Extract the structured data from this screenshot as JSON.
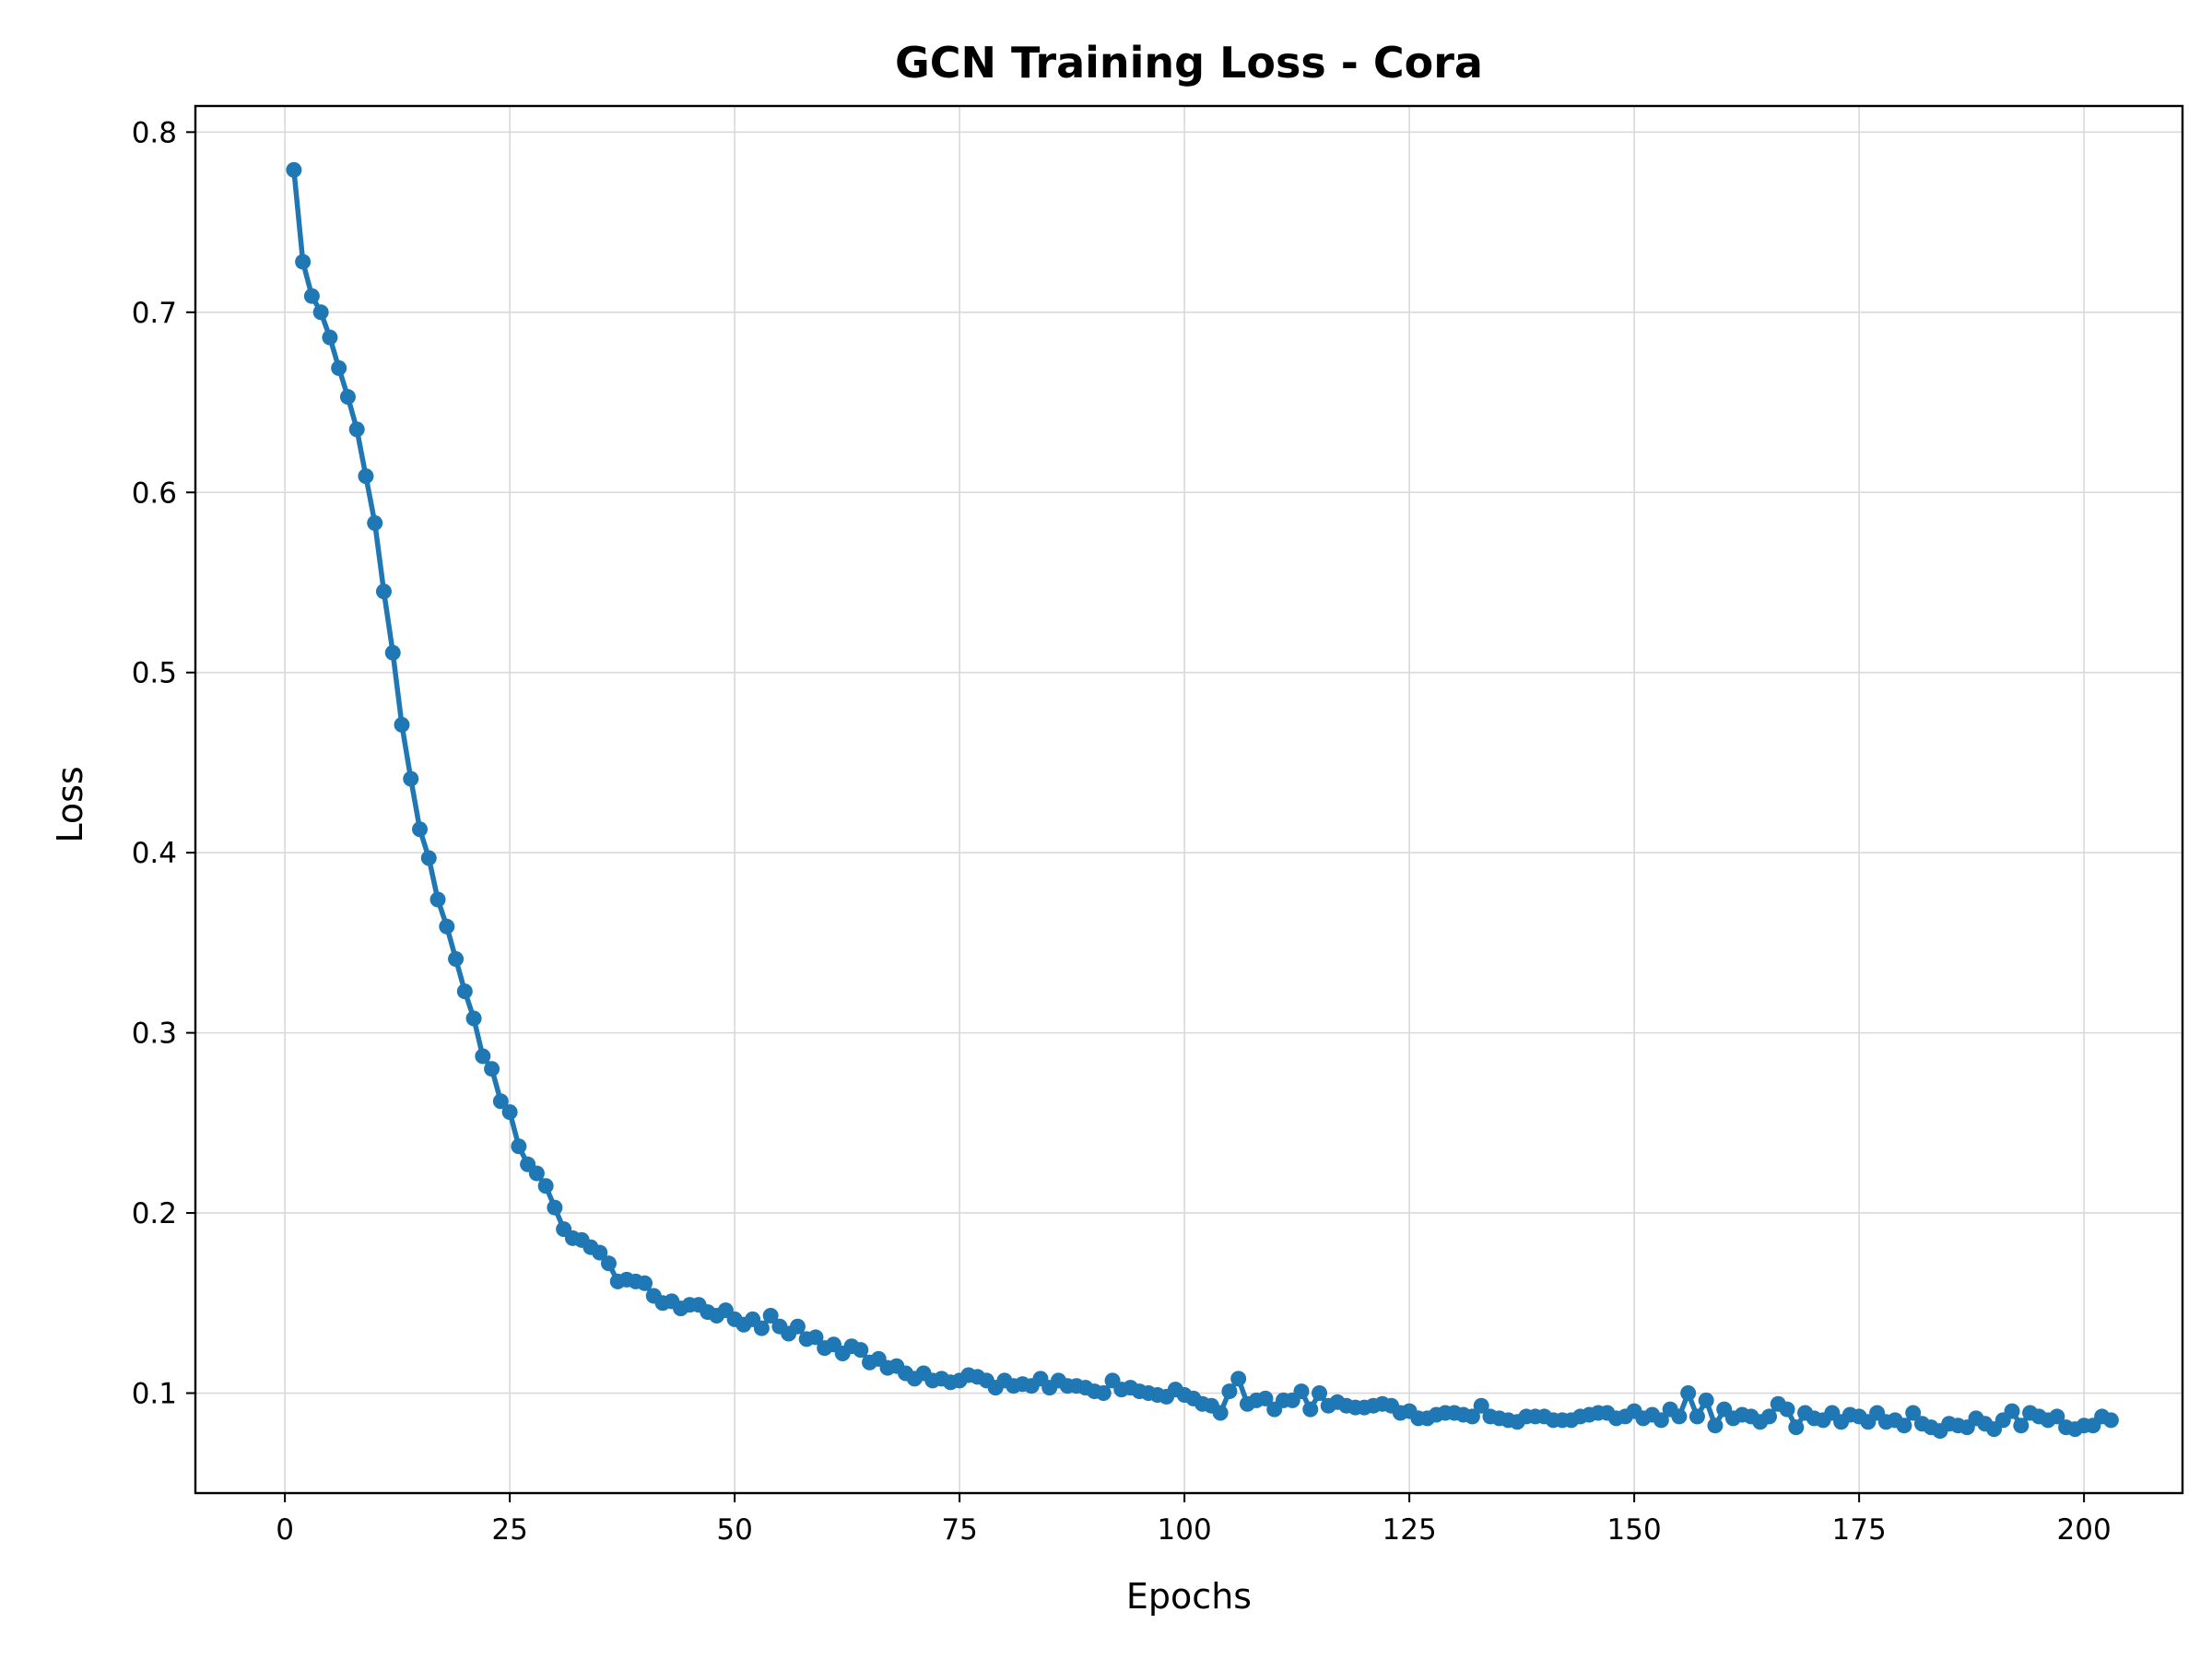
{
  "chart_data": {
    "type": "line",
    "title": "GCN Training Loss - Cora",
    "xlabel": "Epochs",
    "ylabel": "Loss",
    "xlim": [
      -9.95,
      210.95
    ],
    "ylim": [
      0.0445,
      0.8145
    ],
    "xticks": [
      0,
      25,
      50,
      75,
      100,
      125,
      150,
      175,
      200
    ],
    "yticks": [
      0.1,
      0.2,
      0.3,
      0.4,
      0.5,
      0.6,
      0.7,
      0.8
    ],
    "xtick_labels": [
      "0",
      "25",
      "50",
      "75",
      "100",
      "125",
      "150",
      "175",
      "200"
    ],
    "ytick_labels": [
      "0.1",
      "0.2",
      "0.3",
      "0.4",
      "0.5",
      "0.6",
      "0.7",
      "0.8"
    ],
    "grid": true,
    "marker": "circle",
    "series": [
      {
        "color": "#1f77b4",
        "x_start": 1,
        "x_step": 1,
        "values": [
          0.779,
          0.728,
          0.709,
          0.7,
          0.686,
          0.669,
          0.653,
          0.635,
          0.609,
          0.583,
          0.545,
          0.511,
          0.471,
          0.441,
          0.413,
          0.397,
          0.374,
          0.359,
          0.341,
          0.323,
          0.308,
          0.287,
          0.28,
          0.262,
          0.256,
          0.237,
          0.227,
          0.222,
          0.215,
          0.203,
          0.191,
          0.186,
          0.185,
          0.181,
          0.178,
          0.172,
          0.162,
          0.163,
          0.162,
          0.161,
          0.154,
          0.15,
          0.151,
          0.147,
          0.149,
          0.149,
          0.145,
          0.143,
          0.146,
          0.141,
          0.138,
          0.141,
          0.136,
          0.143,
          0.137,
          0.133,
          0.137,
          0.13,
          0.131,
          0.125,
          0.127,
          0.122,
          0.126,
          0.124,
          0.117,
          0.119,
          0.114,
          0.115,
          0.111,
          0.108,
          0.111,
          0.107,
          0.108,
          0.106,
          0.107,
          0.11,
          0.109,
          0.107,
          0.103,
          0.107,
          0.104,
          0.105,
          0.104,
          0.108,
          0.103,
          0.107,
          0.104,
          0.104,
          0.103,
          0.101,
          0.1,
          0.107,
          0.102,
          0.103,
          0.101,
          0.1,
          0.099,
          0.098,
          0.102,
          0.099,
          0.097,
          0.094,
          0.093,
          0.089,
          0.101,
          0.108,
          0.094,
          0.096,
          0.097,
          0.091,
          0.096,
          0.096,
          0.101,
          0.091,
          0.1,
          0.093,
          0.095,
          0.093,
          0.092,
          0.092,
          0.093,
          0.094,
          0.093,
          0.089,
          0.09,
          0.086,
          0.086,
          0.088,
          0.089,
          0.089,
          0.088,
          0.087,
          0.093,
          0.087,
          0.086,
          0.085,
          0.084,
          0.087,
          0.087,
          0.087,
          0.085,
          0.085,
          0.085,
          0.087,
          0.088,
          0.089,
          0.089,
          0.086,
          0.087,
          0.09,
          0.086,
          0.088,
          0.085,
          0.091,
          0.087,
          0.1,
          0.087,
          0.096,
          0.082,
          0.091,
          0.086,
          0.088,
          0.087,
          0.084,
          0.087,
          0.094,
          0.091,
          0.081,
          0.089,
          0.086,
          0.085,
          0.089,
          0.084,
          0.088,
          0.087,
          0.084,
          0.089,
          0.084,
          0.085,
          0.082,
          0.089,
          0.083,
          0.081,
          0.079,
          0.083,
          0.082,
          0.081,
          0.086,
          0.083,
          0.08,
          0.085,
          0.09,
          0.082,
          0.089,
          0.087,
          0.085,
          0.087,
          0.081,
          0.08,
          0.082,
          0.082,
          0.087,
          0.085
        ]
      }
    ]
  }
}
